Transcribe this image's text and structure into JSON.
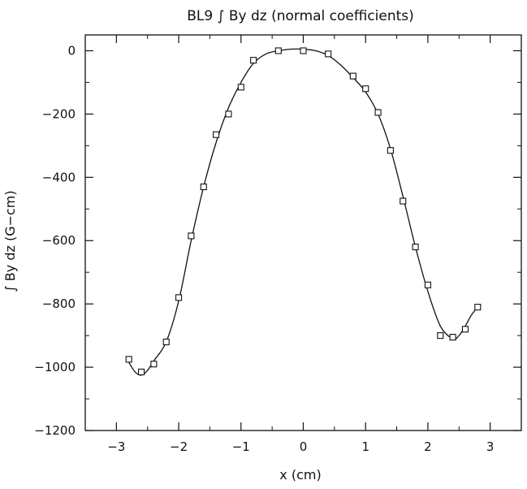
{
  "chart_data": {
    "type": "scatter",
    "title": "BL9 ∫ By dz (normal coefficients)",
    "xlabel": "x (cm)",
    "ylabel": "∫ By dz (G−cm)",
    "xlim": [
      -3.5,
      3.5
    ],
    "ylim": [
      -1200,
      50
    ],
    "xticks": [
      -3,
      -2,
      -1,
      0,
      1,
      2,
      3
    ],
    "yticks": [
      0,
      -200,
      -400,
      -600,
      -800,
      -1000,
      -1200
    ],
    "xtick_labels": [
      "−3",
      "−2",
      "−1",
      "0",
      "1",
      "2",
      "3"
    ],
    "ytick_labels": [
      "0",
      "−200",
      "−400",
      "−600",
      "−800",
      "−1000",
      "−1200"
    ],
    "grid": false,
    "series": [
      {
        "style": "markers",
        "marker": "open-square",
        "x": [
          -2.8,
          -2.6,
          -2.4,
          -2.2,
          -2.0,
          -1.8,
          -1.6,
          -1.4,
          -1.2,
          -1.0,
          -0.8,
          -0.4,
          0.0,
          0.4,
          0.8,
          1.0,
          1.2,
          1.4,
          1.6,
          1.8,
          2.0,
          2.2,
          2.4,
          2.6,
          2.8
        ],
        "y": [
          -975,
          -1015,
          -990,
          -920,
          -780,
          -585,
          -430,
          -265,
          -200,
          -115,
          -30,
          0,
          0,
          -10,
          -80,
          -120,
          -195,
          -315,
          -475,
          -620,
          -740,
          -900,
          -905,
          -880,
          -810
        ]
      },
      {
        "style": "line",
        "x": [
          -2.8,
          -2.7,
          -2.6,
          -2.5,
          -2.4,
          -2.2,
          -2.0,
          -1.8,
          -1.6,
          -1.4,
          -1.2,
          -1.0,
          -0.8,
          -0.6,
          -0.4,
          -0.2,
          0.0,
          0.2,
          0.4,
          0.6,
          0.8,
          1.0,
          1.2,
          1.4,
          1.6,
          1.8,
          2.0,
          2.2,
          2.4,
          2.5,
          2.6,
          2.7,
          2.8
        ],
        "y": [
          -985,
          -1015,
          -1025,
          -1010,
          -980,
          -920,
          -790,
          -600,
          -430,
          -290,
          -180,
          -100,
          -40,
          -10,
          0,
          5,
          5,
          0,
          -15,
          -45,
          -85,
          -130,
          -200,
          -310,
          -460,
          -620,
          -760,
          -870,
          -910,
          -900,
          -870,
          -835,
          -810
        ]
      }
    ]
  }
}
